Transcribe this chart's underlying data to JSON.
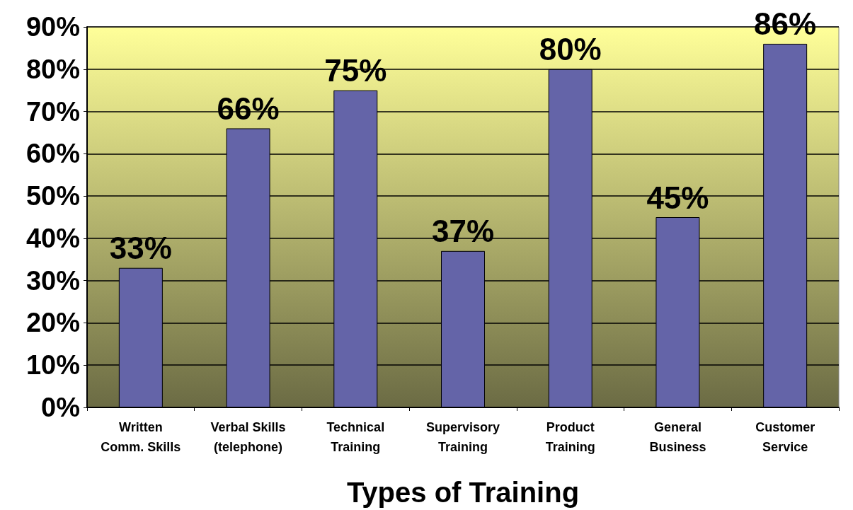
{
  "chart_data": {
    "type": "bar",
    "xlabel": "Types of Training",
    "categories": [
      "Written\nComm. Skills",
      "Verbal Skills\n(telephone)",
      "Technical\nTraining",
      "Supervisory\nTraining",
      "Product\nTraining",
      "General\nBusiness",
      "Customer\nService"
    ],
    "values": [
      33,
      66,
      75,
      37,
      80,
      45,
      86
    ],
    "value_labels": [
      "33%",
      "66%",
      "75%",
      "37%",
      "80%",
      "45%",
      "86%"
    ],
    "color": "#6464a8",
    "ylim": [
      0,
      90
    ],
    "yticks": [
      {
        "value": 0,
        "label": "0%"
      },
      {
        "value": 10,
        "label": "10%"
      },
      {
        "value": 20,
        "label": "20%"
      },
      {
        "value": 30,
        "label": "30%"
      },
      {
        "value": 40,
        "label": "40%"
      },
      {
        "value": 50,
        "label": "50%"
      },
      {
        "value": 60,
        "label": "60%"
      },
      {
        "value": 70,
        "label": "70%"
      },
      {
        "value": 80,
        "label": "80%"
      },
      {
        "value": 90,
        "label": "90%"
      }
    ],
    "grid": "y"
  }
}
